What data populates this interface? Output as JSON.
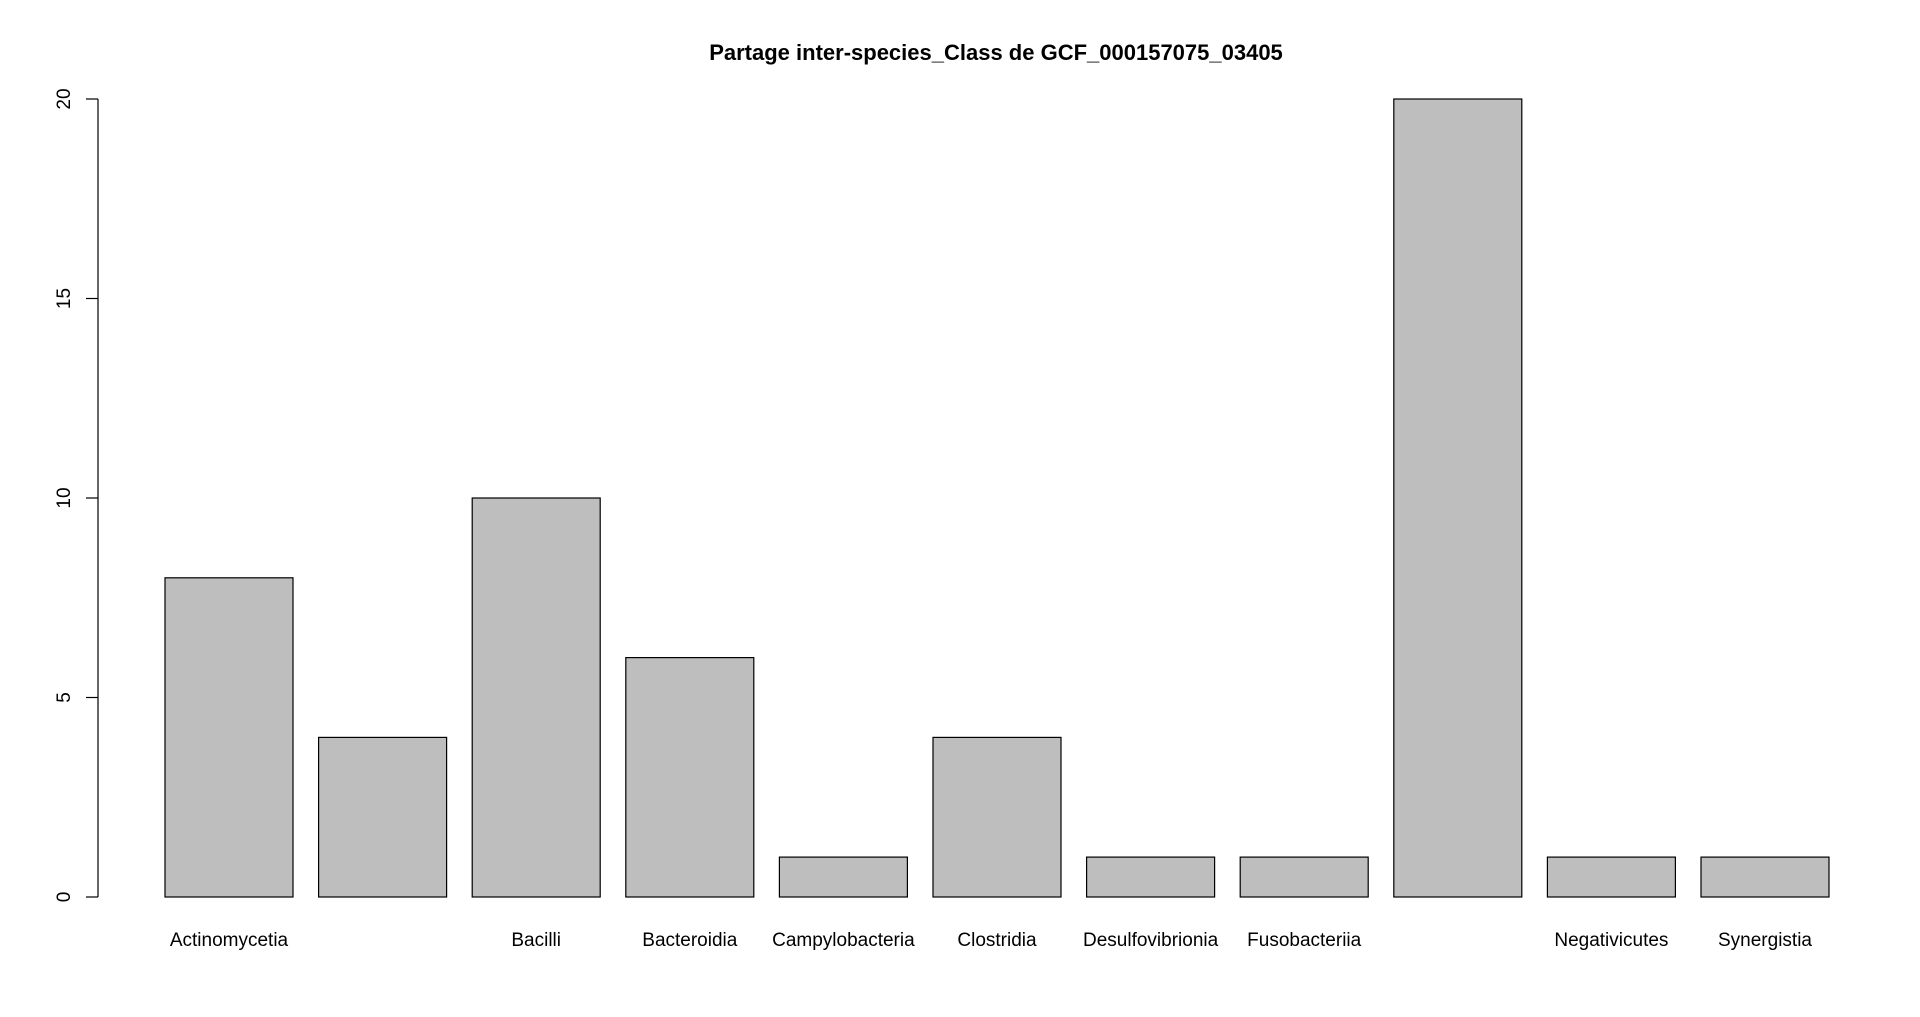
{
  "chart_data": {
    "type": "bar",
    "title": "Partage inter-species_Class de GCF_000157075_03405",
    "xlabel": "",
    "ylabel": "",
    "categories": [
      "Actinomycetia",
      "",
      "Bacilli",
      "Bacteroidia",
      "Campylobacteria",
      "Clostridia",
      "Desulfovibrionia",
      "Fusobacteriia",
      "",
      "Negativicutes",
      "Synergistia"
    ],
    "values": [
      8,
      4,
      10,
      6,
      1,
      4,
      1,
      1,
      20,
      1,
      1
    ],
    "ylim": [
      0,
      20
    ],
    "yticks": [
      0,
      5,
      10,
      15,
      20
    ],
    "grid": false,
    "legend": "none",
    "colors": {
      "bar_fill": "#bebebe",
      "bar_stroke": "#000000",
      "axis": "#000000"
    }
  }
}
